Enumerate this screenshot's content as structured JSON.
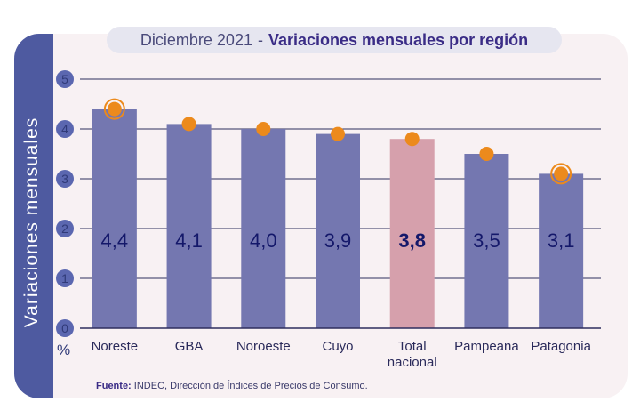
{
  "title": {
    "date": "Diciembre 2021",
    "separator": "-",
    "main": "Variaciones mensuales por región"
  },
  "unit_label": "%",
  "source": {
    "label": "Fuente:",
    "text": "INDEC, Dirección de Índices de Precios de Consumo."
  },
  "colors": {
    "bar": "#7477b0",
    "bar_highlight": "#d6a0ac",
    "dot": "#ec8a1c",
    "side_band": "#4e5aa0",
    "grid": "#2e2e5e",
    "axis_tick_bg": "#5b67b0"
  },
  "chart_data": {
    "type": "bar",
    "ylabel": "Variaciones mensuales",
    "xlabel": "",
    "categories": [
      "Noreste",
      "GBA",
      "Noroeste",
      "Cuyo",
      "Total nacional",
      "Pampeana",
      "Patagonia"
    ],
    "values": [
      4.4,
      4.1,
      4.0,
      3.9,
      3.8,
      3.5,
      3.1
    ],
    "value_labels": [
      "4,4",
      "4,1",
      "4,0",
      "3,9",
      "3,8",
      "3,5",
      "3,1"
    ],
    "highlight_index": 4,
    "circled_indices": [
      0,
      6
    ],
    "yticks": [
      "0",
      "1",
      "2",
      "3",
      "4",
      "5"
    ],
    "ylim": [
      0,
      5
    ],
    "grid": true
  }
}
